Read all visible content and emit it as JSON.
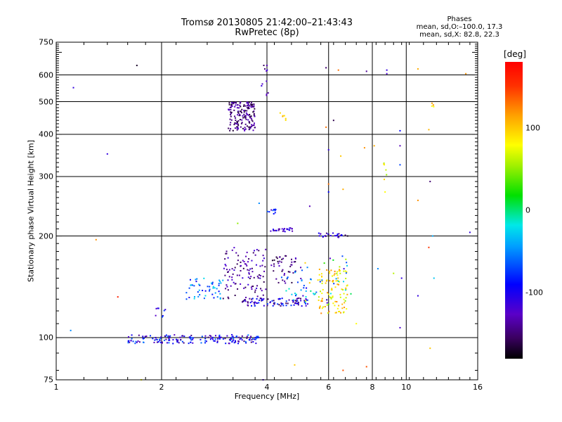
{
  "chart_data": {
    "type": "scatter",
    "title": "Tromsø 20130805 21:42:00–21:43:43",
    "subtitle": "RwPretec (8p)",
    "stats": {
      "heading": "Phases",
      "line_o": "mean, sd,O:–100.0, 17.3",
      "line_x": "mean, sd,X:  82.8, 22.3"
    },
    "xlabel": "Frequency [MHz]",
    "ylabel": "Stationary phase Virtual Height [km]",
    "x_scale": "log",
    "y_scale": "log",
    "xlim": [
      1,
      16
    ],
    "ylim": [
      75,
      750
    ],
    "x_ticks": [
      1,
      2,
      4,
      6,
      8,
      10,
      16
    ],
    "x_tick_labels": [
      "1",
      "2",
      "4",
      "6",
      "8",
      "10",
      "16"
    ],
    "y_ticks": [
      75,
      100,
      200,
      300,
      400,
      500,
      600,
      750
    ],
    "y_tick_labels": [
      "75",
      "100",
      "200",
      "300",
      "400",
      "500",
      "600",
      "750"
    ],
    "grid": true,
    "colorbar": {
      "label": "[deg]",
      "range": [
        -180,
        180
      ],
      "ticks": [
        100,
        0,
        -100
      ],
      "tick_labels": [
        "100",
        "0",
        "-100"
      ]
    },
    "clusters": [
      {
        "x_range": [
          1.6,
          3.8
        ],
        "y_range": [
          96,
          102
        ],
        "n": 180,
        "phase": [
          -150,
          -50
        ]
      },
      {
        "x_range": [
          1.9,
          2.05
        ],
        "y_range": [
          115,
          123
        ],
        "n": 8,
        "phase": [
          -140,
          -60
        ]
      },
      {
        "x_range": [
          2.35,
          3.0
        ],
        "y_range": [
          130,
          150
        ],
        "n": 50,
        "phase": [
          -110,
          -20
        ]
      },
      {
        "x_range": [
          3.0,
          4.0
        ],
        "y_range": [
          130,
          185
        ],
        "n": 110,
        "phase": [
          -160,
          -110
        ]
      },
      {
        "x_range": [
          3.4,
          5.3
        ],
        "y_range": [
          124,
          131
        ],
        "n": 90,
        "phase": [
          -160,
          -70
        ]
      },
      {
        "x_range": [
          4.1,
          5.0
        ],
        "y_range": [
          145,
          175
        ],
        "n": 45,
        "phase": [
          -170,
          -120
        ]
      },
      {
        "x_range": [
          4.4,
          5.6
        ],
        "y_range": [
          125,
          160
        ],
        "n": 30,
        "phase": [
          -100,
          0
        ]
      },
      {
        "x_range": [
          5.6,
          6.8
        ],
        "y_range": [
          118,
          160
        ],
        "n": 100,
        "phase": [
          60,
          130
        ]
      },
      {
        "x_range": [
          5.0,
          7.0
        ],
        "y_range": [
          125,
          175
        ],
        "n": 35,
        "phase": [
          -130,
          100
        ]
      },
      {
        "x_range": [
          4.1,
          4.8
        ],
        "y_range": [
          206,
          212
        ],
        "n": 25,
        "phase": [
          -140,
          -90
        ]
      },
      {
        "x_range": [
          5.6,
          6.7
        ],
        "y_range": [
          198,
          204
        ],
        "n": 25,
        "phase": [
          -150,
          -80
        ]
      },
      {
        "x_range": [
          4.0,
          4.3
        ],
        "y_range": [
          232,
          240
        ],
        "n": 10,
        "phase": [
          -140,
          -60
        ]
      },
      {
        "x_range": [
          3.1,
          3.7
        ],
        "y_range": [
          410,
          500
        ],
        "n": 170,
        "phase": [
          -170,
          -120
        ]
      },
      {
        "x_range": [
          3.85,
          4.05
        ],
        "y_range": [
          520,
          650
        ],
        "n": 10,
        "phase": [
          -160,
          -110
        ]
      },
      {
        "x_range": [
          4.3,
          4.7
        ],
        "y_range": [
          440,
          470
        ],
        "n": 6,
        "phase": [
          80,
          120
        ]
      },
      {
        "x_range": [
          8.6,
          8.8
        ],
        "y_range": [
          290,
          330
        ],
        "n": 6,
        "phase": [
          50,
          100
        ]
      },
      {
        "x_range": [
          11.6,
          12.0
        ],
        "y_range": [
          390,
          500
        ],
        "n": 5,
        "phase": [
          80,
          120
        ]
      }
    ],
    "points": [
      {
        "x": 1.12,
        "y": 550,
        "phase": -110
      },
      {
        "x": 1.7,
        "y": 640,
        "phase": -170
      },
      {
        "x": 1.4,
        "y": 350,
        "phase": -110
      },
      {
        "x": 1.3,
        "y": 195,
        "phase": 120
      },
      {
        "x": 1.5,
        "y": 132,
        "phase": 160
      },
      {
        "x": 1.1,
        "y": 105,
        "phase": -50
      },
      {
        "x": 3.9,
        "y": 75,
        "phase": -120
      },
      {
        "x": 4.0,
        "y": 640,
        "phase": -130
      },
      {
        "x": 5.9,
        "y": 630,
        "phase": -150
      },
      {
        "x": 6.4,
        "y": 620,
        "phase": 130
      },
      {
        "x": 7.7,
        "y": 615,
        "phase": -140
      },
      {
        "x": 8.8,
        "y": 620,
        "phase": -110
      },
      {
        "x": 8.8,
        "y": 605,
        "phase": -120
      },
      {
        "x": 10.8,
        "y": 625,
        "phase": 110
      },
      {
        "x": 14.8,
        "y": 605,
        "phase": 120
      },
      {
        "x": 5.9,
        "y": 420,
        "phase": 130
      },
      {
        "x": 6.2,
        "y": 440,
        "phase": -160
      },
      {
        "x": 6.0,
        "y": 360,
        "phase": -110
      },
      {
        "x": 6.5,
        "y": 345,
        "phase": 100
      },
      {
        "x": 6.0,
        "y": 285,
        "phase": 130
      },
      {
        "x": 6.0,
        "y": 270,
        "phase": -90
      },
      {
        "x": 6.6,
        "y": 275,
        "phase": 110
      },
      {
        "x": 7.6,
        "y": 365,
        "phase": 120
      },
      {
        "x": 8.1,
        "y": 370,
        "phase": 110
      },
      {
        "x": 8.7,
        "y": 270,
        "phase": 80
      },
      {
        "x": 9.6,
        "y": 410,
        "phase": -90
      },
      {
        "x": 9.6,
        "y": 370,
        "phase": -130
      },
      {
        "x": 9.6,
        "y": 325,
        "phase": -70
      },
      {
        "x": 11.7,
        "y": 290,
        "phase": -150
      },
      {
        "x": 10.8,
        "y": 255,
        "phase": 120
      },
      {
        "x": 11.9,
        "y": 200,
        "phase": -40
      },
      {
        "x": 11.6,
        "y": 185,
        "phase": 150
      },
      {
        "x": 15.2,
        "y": 205,
        "phase": -110
      },
      {
        "x": 9.7,
        "y": 150,
        "phase": -110
      },
      {
        "x": 9.6,
        "y": 107,
        "phase": -120
      },
      {
        "x": 9.2,
        "y": 155,
        "phase": 60
      },
      {
        "x": 7.7,
        "y": 82,
        "phase": 140
      },
      {
        "x": 6.6,
        "y": 80,
        "phase": 140
      },
      {
        "x": 4.8,
        "y": 83,
        "phase": 100
      },
      {
        "x": 11.7,
        "y": 93,
        "phase": 100
      },
      {
        "x": 10.8,
        "y": 133,
        "phase": -110
      },
      {
        "x": 12.0,
        "y": 150,
        "phase": -30
      },
      {
        "x": 8.3,
        "y": 160,
        "phase": -50
      },
      {
        "x": 1.75,
        "y": 75,
        "phase": 80
      },
      {
        "x": 3.3,
        "y": 218,
        "phase": 50
      },
      {
        "x": 3.8,
        "y": 250,
        "phase": -50
      },
      {
        "x": 5.3,
        "y": 245,
        "phase": -130
      },
      {
        "x": 6.8,
        "y": 200,
        "phase": -170
      },
      {
        "x": 7.2,
        "y": 110,
        "phase": 80
      }
    ]
  }
}
